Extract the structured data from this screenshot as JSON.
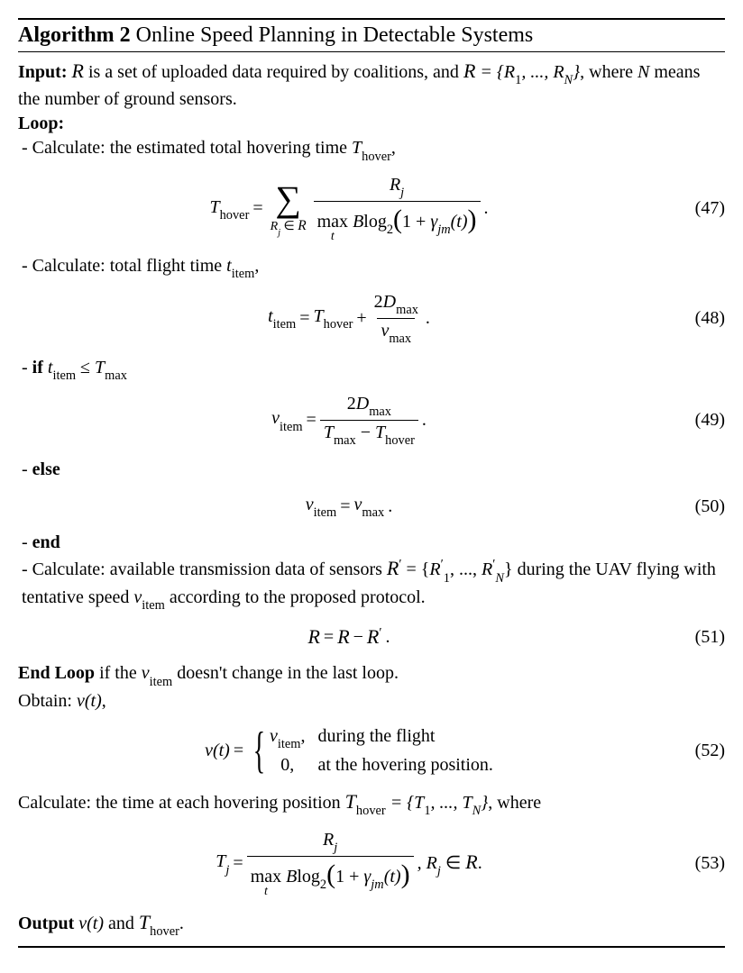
{
  "algo_number": "Algorithm 2",
  "algo_title": "Online Speed Planning in Detectable Systems",
  "input_label": "Input:",
  "input_text_1": " is a set of uploaded data required by coalitions, and ",
  "input_text_2": ", where ",
  "input_text_3": " means the number of ground sensors.",
  "R_sym": "R",
  "R_set": " = {R",
  "R_set_mid": ", ..., R",
  "R_set_end": "}",
  "sub_1": "1",
  "sub_N": "N",
  "N_sym": "N",
  "loop_label": "Loop:",
  "step1": " - Calculate: the estimated total hovering time ",
  "T_hover": "T",
  "hover_sub": "hover",
  "comma": ",",
  "period": ".",
  "eq47_num": "(47)",
  "eq47_lhs": "T",
  "eq47_eq": "=",
  "eq47_sum_below": "R",
  "eq47_sum_below2": " ∈ ",
  "eq47_frac_num": "R",
  "eq47_frac_num_sub": "j",
  "eq47_max": "max",
  "eq47_max_sub": "t",
  "eq47_B": " B",
  "eq47_log": "log",
  "eq47_log_sub": "2",
  "eq47_paren_content_1": "1 + ",
  "eq47_gamma": "γ",
  "eq47_gamma_sub": "jm",
  "eq47_t": "(t)",
  "step2": " - Calculate: total flight time ",
  "t_item": "t",
  "item_sub": "item",
  "eq48_num": "(48)",
  "eq48_plus": " + ",
  "eq48_2D": "2D",
  "max_sub": "max",
  "eq48_v": "v",
  "step3_a": " - ",
  "if_label": "if",
  "step3_b": " ≤ ",
  "T_max": "T",
  "eq49_num": "(49)",
  "eq49_v": "v",
  "eq49_minus": " − ",
  "else_label": "else",
  "eq50_num": "(50)",
  "end_label": "end",
  "step4_a": " - Calculate: available transmission data of sensors ",
  "R_prime": "′",
  "step4_b": " during the UAV flying with tentative speed ",
  "step4_c": " according to the proposed protocol.",
  "eq51_num": "(51)",
  "eq51_minus": " − ",
  "endloop_label": "End Loop",
  "endloop_text_a": " if the ",
  "endloop_text_b": " doesn't change in the last loop.",
  "obtain": "Obtain: ",
  "v_t": "v(t)",
  "eq52_num": "(52)",
  "case1_val": "v",
  "case1_cond": "during the flight",
  "case2_val": "0,",
  "case2_cond": "at the hovering position.",
  "step5_a": "Calculate: the time at each hovering position ",
  "T_hover_cal": "T",
  "T_set": " = {T",
  "T_set_mid": ", ..., T",
  "step5_b": ", where",
  "eq53_num": "(53)",
  "eq53_Tj": "T",
  "eq53_comma_Rj": ", R",
  "eq53_in": " ∈ ",
  "output_label": "Output",
  "output_and": " and "
}
